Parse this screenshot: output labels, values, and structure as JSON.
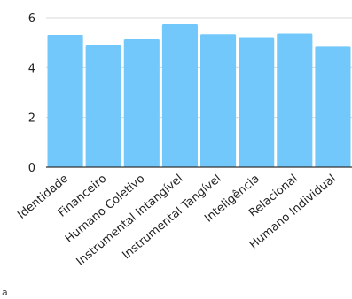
{
  "chart_data": {
    "type": "bar",
    "categories": [
      "Identidade",
      "Financeiro",
      "Humano Coletivo",
      "Instrumental Intangível",
      "Instrumental Tangível",
      "Inteligência",
      "Relacional",
      "Humano Individual"
    ],
    "values": [
      5.3,
      4.9,
      5.15,
      5.75,
      5.35,
      5.2,
      5.38,
      4.85
    ],
    "ylim": [
      0,
      6
    ],
    "yticks": [
      "0",
      "2",
      "4",
      "6"
    ],
    "grid": true,
    "legend": "none",
    "colors": {
      "bar": "#73c8fb",
      "grid": "#d9d9d9",
      "axis": "#333333"
    }
  },
  "corner_mark": "a"
}
